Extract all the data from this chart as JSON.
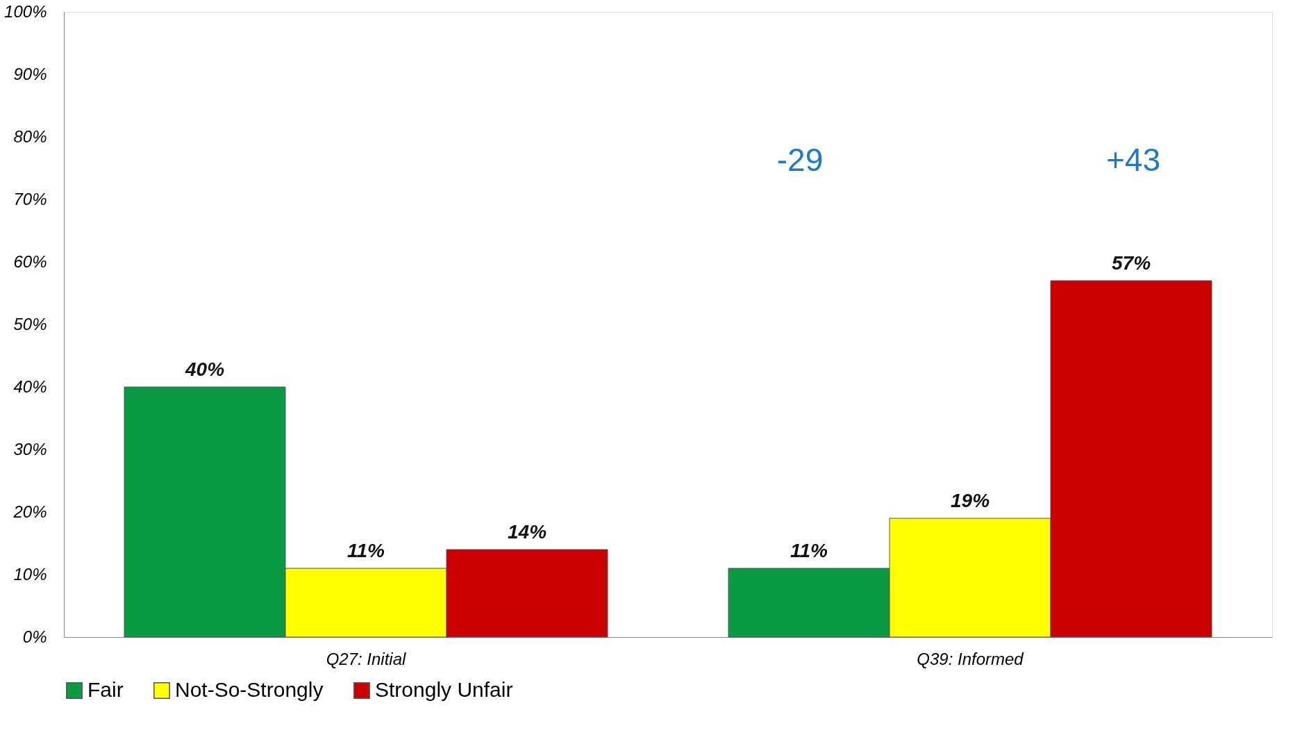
{
  "chart_data": {
    "type": "bar",
    "categories": [
      "Q27: Initial",
      "Q39: Informed"
    ],
    "series": [
      {
        "name": "Fair",
        "color": "#0a9a44",
        "values": [
          40,
          11
        ],
        "value_labels": [
          "40%",
          "11%"
        ]
      },
      {
        "name": "Not-So-Strongly",
        "color": "#ffff00",
        "values": [
          11,
          19
        ],
        "value_labels": [
          "11%",
          "19%"
        ]
      },
      {
        "name": "Strongly Unfair",
        "color": "#cc0000",
        "values": [
          14,
          57
        ],
        "value_labels": [
          "14%",
          "57%"
        ]
      }
    ],
    "ylim": [
      0,
      100
    ],
    "yticks": [
      {
        "value": 0,
        "label": "0%"
      },
      {
        "value": 10,
        "label": "10%"
      },
      {
        "value": 20,
        "label": "20%"
      },
      {
        "value": 30,
        "label": "30%"
      },
      {
        "value": 40,
        "label": "40%"
      },
      {
        "value": 50,
        "label": "50%"
      },
      {
        "value": 60,
        "label": "60%"
      },
      {
        "value": 70,
        "label": "70%"
      },
      {
        "value": 80,
        "label": "80%"
      },
      {
        "value": 90,
        "label": "90%"
      },
      {
        "value": 100,
        "label": "100%"
      }
    ],
    "annotations": [
      "-29",
      "+43"
    ],
    "grid": false,
    "legend": "bottom"
  }
}
